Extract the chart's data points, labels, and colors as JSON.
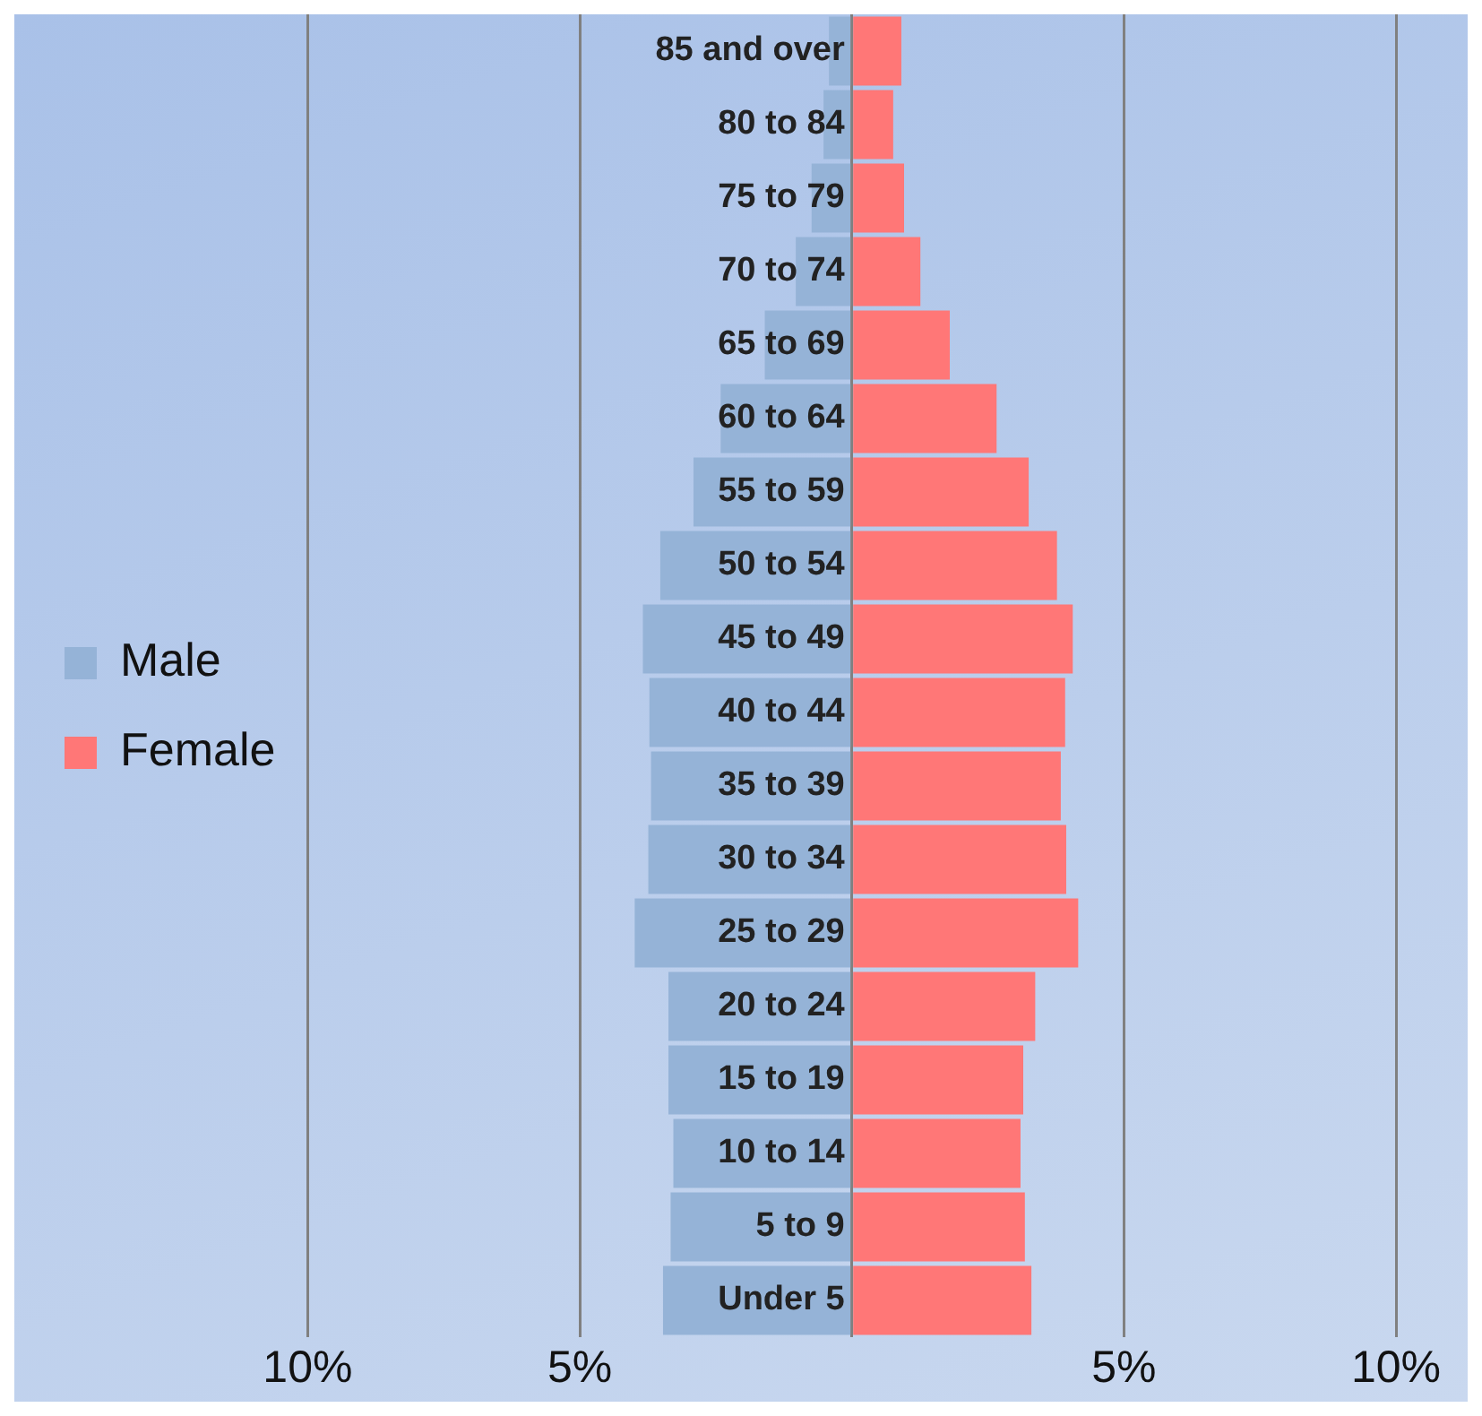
{
  "chart_data": {
    "type": "bar",
    "orientation": "horizontal",
    "stacked": true,
    "grid": "x",
    "legend": "left",
    "categories": [
      "85 and over",
      "80 to 84",
      "75 to 79",
      "70 to 74",
      "65 to 69",
      "60 to 64",
      "55 to 59",
      "50 to 54",
      "45 to 49",
      "40 to 44",
      "35 to 39",
      "30 to 34",
      "25 to 29",
      "20 to 24",
      "15 to 19",
      "10 to 14",
      "5 to 9",
      "Under 5"
    ],
    "series": [
      {
        "name": "Male",
        "color": "#95b3d7",
        "values": [
          -0.42,
          -0.52,
          -0.74,
          -1.03,
          -1.6,
          -2.41,
          -2.91,
          -3.52,
          -3.84,
          -3.72,
          -3.69,
          -3.74,
          -3.99,
          -3.37,
          -3.37,
          -3.28,
          -3.33,
          -3.47
        ]
      },
      {
        "name": "Female",
        "color": "#ff7777",
        "values": [
          0.91,
          0.76,
          0.96,
          1.26,
          1.8,
          2.66,
          3.25,
          3.77,
          4.06,
          3.92,
          3.84,
          3.94,
          4.16,
          3.37,
          3.15,
          3.1,
          3.18,
          3.3
        ]
      }
    ],
    "xlim": [
      -10,
      10
    ],
    "xticks": [
      {
        "value": -10,
        "label": "10%"
      },
      {
        "value": -5,
        "label": "5%"
      },
      {
        "value": 0,
        "label": null
      },
      {
        "value": 5,
        "label": "5%"
      },
      {
        "value": 10,
        "label": "10%"
      }
    ]
  }
}
